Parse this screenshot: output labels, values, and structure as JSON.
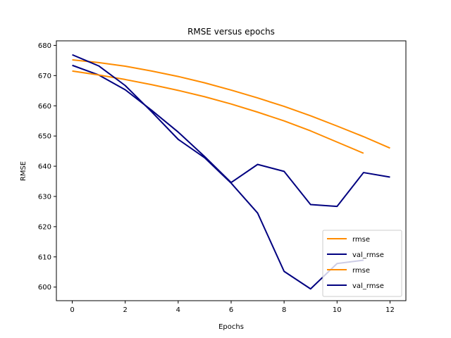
{
  "colors": {
    "rmse": "#ff8c00",
    "val_rmse": "#000080",
    "axes": "#000000",
    "legend_border": "#cccccc",
    "background": "#ffffff"
  },
  "chart_data": {
    "type": "line",
    "title": "RMSE versus epochs",
    "xlabel": "Epochs",
    "ylabel": "RMSE",
    "xlim": [
      -0.6,
      12.6
    ],
    "ylim": [
      595.5,
      681.5
    ],
    "xticks": [
      0,
      2,
      4,
      6,
      8,
      10,
      12
    ],
    "yticks": [
      600,
      610,
      620,
      630,
      640,
      650,
      660,
      670,
      680
    ],
    "grid": false,
    "legend_position": "lower right",
    "series": [
      {
        "name": "rmse",
        "color_key": "rmse",
        "x": [
          0,
          1,
          2,
          3,
          4,
          5,
          6,
          7,
          8,
          9,
          10,
          11,
          12
        ],
        "y": [
          675.2,
          674.3,
          673.1,
          671.5,
          669.7,
          667.6,
          665.2,
          662.6,
          659.8,
          656.7,
          653.3,
          649.8,
          646.0
        ]
      },
      {
        "name": "val_rmse",
        "color_key": "val_rmse",
        "x": [
          0,
          1,
          2,
          3,
          4,
          5,
          6,
          7,
          8,
          9,
          10,
          11,
          12
        ],
        "y": [
          673.4,
          670.2,
          665.3,
          658.5,
          651.3,
          643.2,
          634.6,
          640.6,
          638.3,
          627.3,
          626.7,
          637.9,
          636.4
        ]
      },
      {
        "name": "rmse",
        "color_key": "rmse",
        "x": [
          0,
          1,
          2,
          3,
          4,
          5,
          6,
          7,
          8,
          9,
          10,
          11
        ],
        "y": [
          671.5,
          670.2,
          668.7,
          667.0,
          665.1,
          663.0,
          660.6,
          657.9,
          655.0,
          651.7,
          648.0,
          644.3
        ]
      },
      {
        "name": "val_rmse",
        "color_key": "val_rmse",
        "x": [
          0,
          1,
          2,
          3,
          4,
          5,
          6,
          7,
          8,
          9,
          10,
          11
        ],
        "y": [
          676.9,
          673.2,
          666.7,
          658.0,
          648.9,
          642.8,
          634.4,
          624.5,
          605.2,
          599.4,
          607.8,
          608.9
        ]
      }
    ]
  }
}
